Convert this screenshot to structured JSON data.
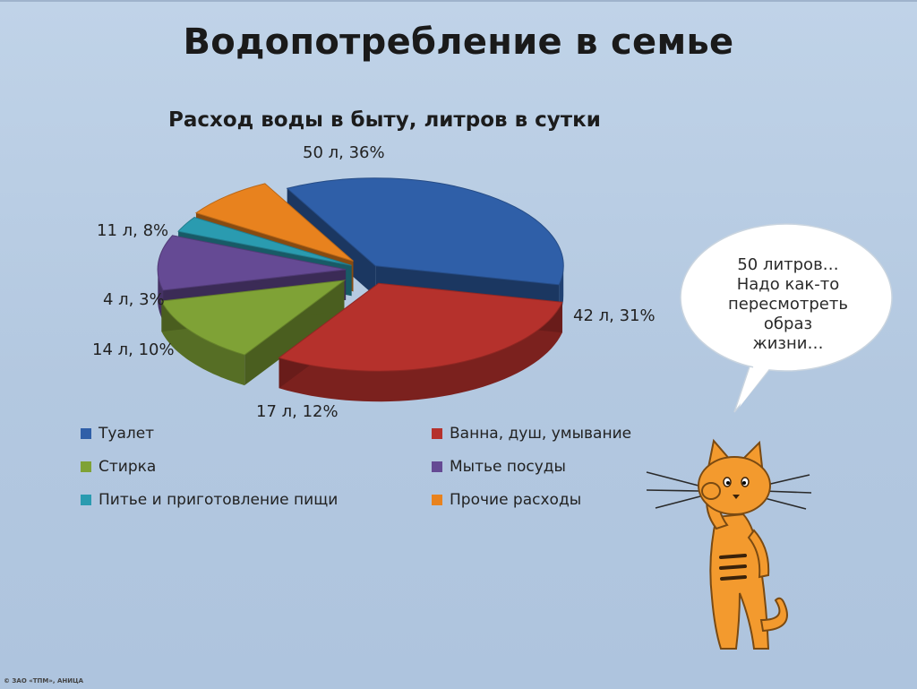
{
  "slide": {
    "title": "Водопотребление в семье",
    "copyright": "© ЗАО «ТПМ», АНИЦА"
  },
  "speech_bubble": {
    "lines": [
      "50 литров…",
      "Надо как-то",
      "пересмотреть",
      "образ",
      "жизни…"
    ]
  },
  "chart_data": {
    "type": "pie",
    "title": "Расход воды в быту, литров в сутки",
    "unit": "л",
    "legend_position": "bottom",
    "slices": [
      {
        "name": "Туалет",
        "value": 50,
        "percent": 36,
        "label": "50 л, 36%",
        "color": "#2f5fa8"
      },
      {
        "name": "Ванна, душ, умывание",
        "value": 42,
        "percent": 31,
        "label": "42 л, 31%",
        "color": "#b5312c"
      },
      {
        "name": "Стирка",
        "value": 17,
        "percent": 12,
        "label": "17 л, 12%",
        "color": "#7fa236"
      },
      {
        "name": "Мытье посуды",
        "value": 14,
        "percent": 10,
        "label": "14 л, 10%",
        "color": "#654a94"
      },
      {
        "name": "Питье и приготовление пищи",
        "value": 4,
        "percent": 3,
        "label": "4 л, 3%",
        "color": "#2a9bb0"
      },
      {
        "name": "Прочие расходы",
        "value": 11,
        "percent": 8,
        "label": "11 л, 8%",
        "color": "#e8821e"
      }
    ]
  }
}
